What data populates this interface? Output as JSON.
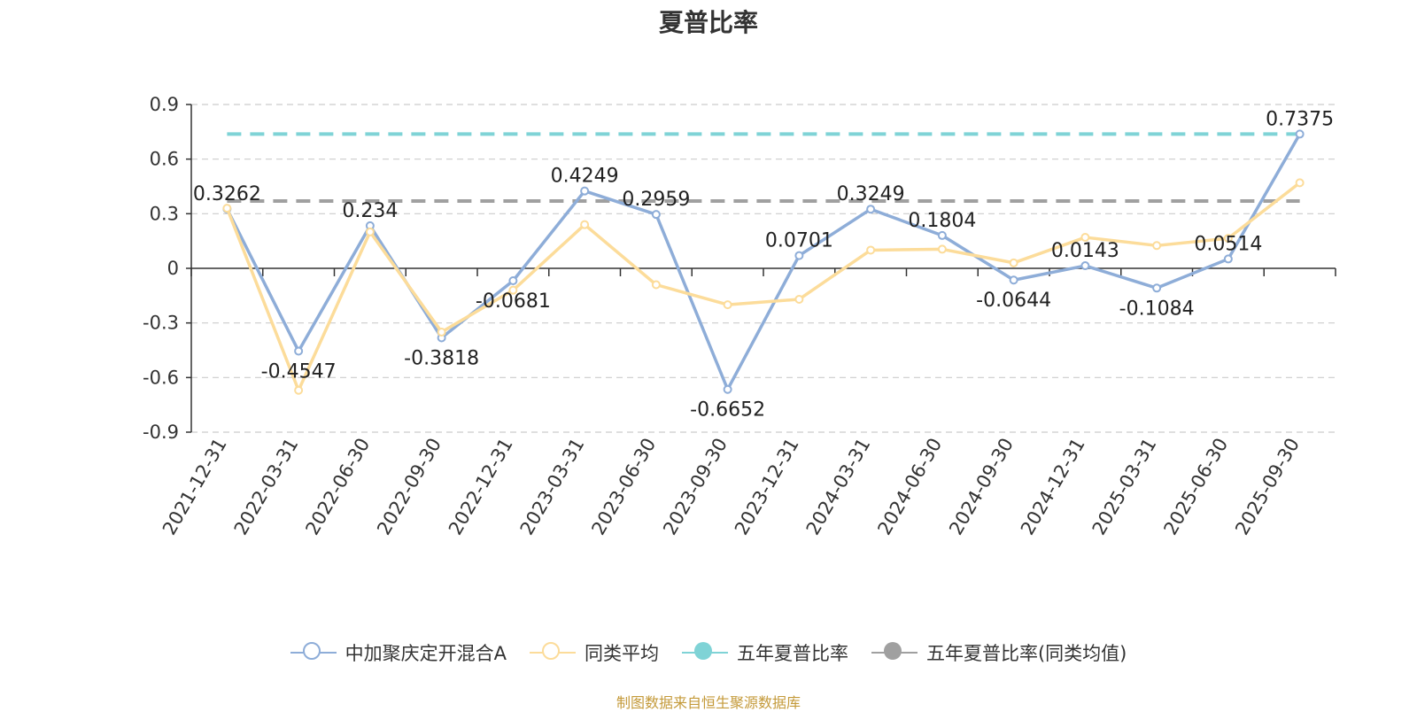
{
  "chart_data": {
    "type": "line",
    "title": "夏普比率",
    "categories": [
      "2021-12-31",
      "2022-03-31",
      "2022-06-30",
      "2022-09-30",
      "2022-12-31",
      "2023-03-31",
      "2023-06-30",
      "2023-09-30",
      "2023-12-31",
      "2024-03-31",
      "2024-06-30",
      "2024-09-30",
      "2024-12-31",
      "2025-03-31",
      "2025-06-30",
      "2025-09-30"
    ],
    "ylim": [
      -0.9,
      0.9
    ],
    "yticks": [
      "0.9",
      "0.6",
      "0.3",
      "0",
      "-0.3",
      "-0.6",
      "-0.9"
    ],
    "grid": true,
    "legend_position": "bottom",
    "series": [
      {
        "name": "中加聚庆定开混合A",
        "color": "#8eadd8",
        "values": [
          0.3262,
          -0.4547,
          0.234,
          -0.3818,
          -0.0681,
          0.4249,
          0.2959,
          -0.6652,
          0.0701,
          0.3249,
          0.1804,
          -0.0644,
          0.0143,
          -0.1084,
          0.0514,
          0.7375
        ],
        "labels": [
          "0.3262",
          "-0.4547",
          "0.234",
          "-0.3818",
          "-0.0681",
          "0.4249",
          "0.2959",
          "-0.6652",
          "0.0701",
          "0.3249",
          "0.1804",
          "-0.0644",
          "0.0143",
          "-0.1084",
          "0.0514",
          "0.7375"
        ]
      },
      {
        "name": "同类平均",
        "color": "#fcdc9a",
        "values": [
          0.33,
          -0.67,
          0.2,
          -0.35,
          -0.12,
          0.24,
          -0.09,
          -0.2,
          -0.17,
          0.1,
          0.105,
          0.03,
          0.17,
          0.125,
          0.165,
          0.47
        ]
      },
      {
        "name": "五年夏普比率",
        "color": "#7fd3d6",
        "reference": 0.7375
      },
      {
        "name": "五年夏普比率(同类均值)",
        "color": "#a0a0a0",
        "reference": 0.37
      }
    ]
  },
  "source_note": "制图数据来自恒生聚源数据库"
}
